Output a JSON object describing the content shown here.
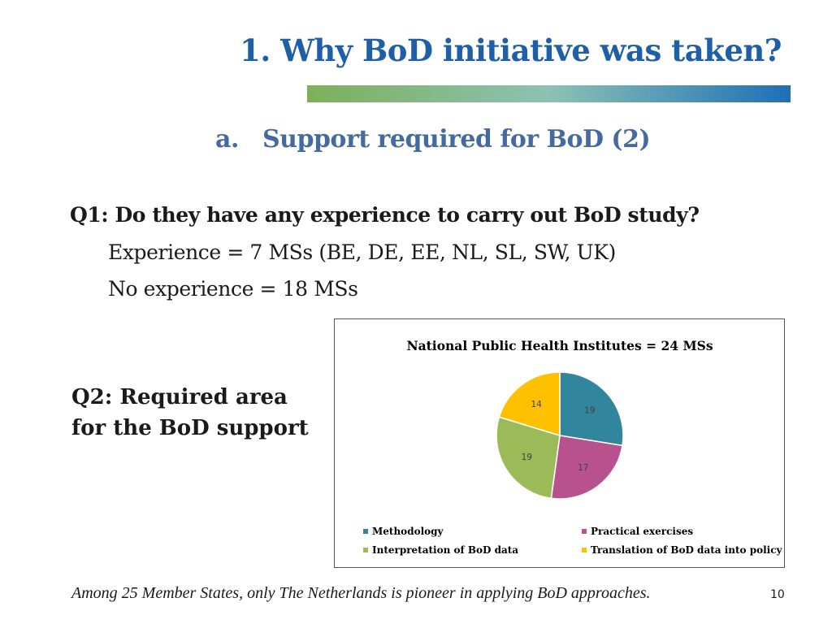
{
  "slide": {
    "title": "1. Why BoD initiative was taken?",
    "subtitle_marker": "a.",
    "subtitle": "Support required for BoD (2)",
    "q1": "Q1: Do they have any experience to carry out BoD study?",
    "experience_line": "Experience = 7 MSs (BE, DE, EE, NL, SL, SW, UK)",
    "no_experience_line": "No experience = 18 MSs",
    "q2": "Q2: Required area for the BoD support",
    "footer": "Among 25 Member States, only The Netherlands is pioneer in applying BoD approaches.",
    "page_number": "10",
    "title_bar_colors": [
      "#7db05a",
      "#8cc2b4",
      "#1e6fb8"
    ]
  },
  "chart_data": {
    "type": "pie",
    "title": "National Public Health Institutes = 24 MSs",
    "categories": [
      "Methodology",
      "Practical exercises",
      "Interpretation of BoD data",
      "Translation of BoD data into policy"
    ],
    "values": [
      19,
      17,
      19,
      14
    ],
    "colors": [
      "#31859c",
      "#b8528f",
      "#9bbb59",
      "#ffc000"
    ],
    "start_angle_deg": 0,
    "direction": "clockwise",
    "legend_position": "bottom"
  }
}
